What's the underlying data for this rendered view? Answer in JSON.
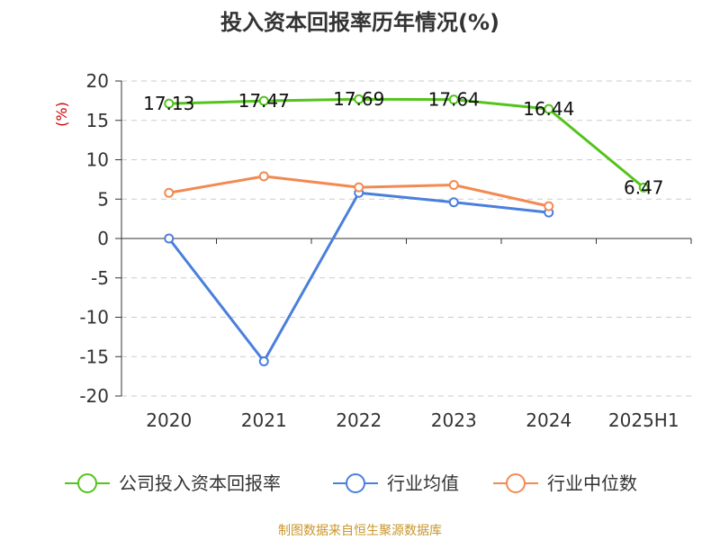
{
  "source": "制图数据来自恒生聚源数据库",
  "chart_data": {
    "type": "line",
    "title": "投入资本回报率历年情况(%)",
    "unit_label": "(%)",
    "categories": [
      "2020",
      "2021",
      "2022",
      "2023",
      "2024",
      "2025H1"
    ],
    "ylim": [
      -20,
      20
    ],
    "yticks": [
      20,
      15,
      10,
      5,
      0,
      -5,
      -10,
      -15,
      -20
    ],
    "grid": "horizontal-dashed",
    "legend_position": "bottom",
    "series": [
      {
        "name": "公司投入资本回报率",
        "color": "#52c41a",
        "values": [
          17.13,
          17.47,
          17.69,
          17.64,
          16.44,
          6.47
        ],
        "labels": [
          "17.13",
          "17.47",
          "17.69",
          "17.64",
          "16.44",
          "6.47"
        ]
      },
      {
        "name": "行业均值",
        "color": "#4a7fdc",
        "values": [
          0,
          -15.6,
          5.8,
          4.6,
          3.3,
          null
        ]
      },
      {
        "name": "行业中位数",
        "color": "#f28a52",
        "values": [
          5.8,
          7.9,
          6.5,
          6.8,
          4.1,
          null
        ]
      }
    ]
  }
}
